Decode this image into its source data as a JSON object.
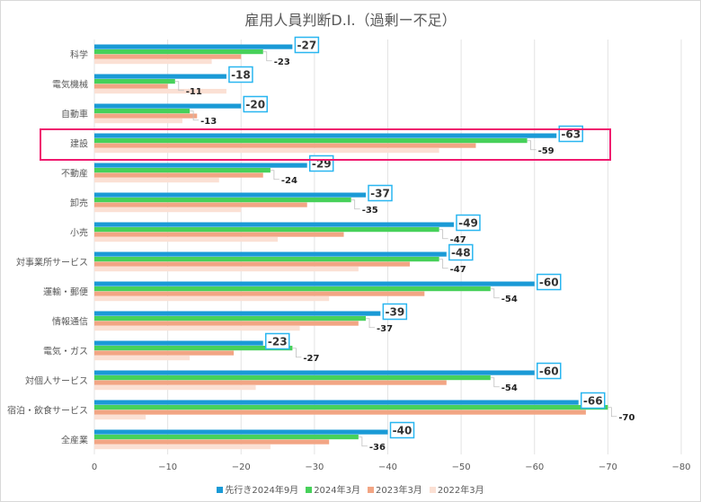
{
  "chart_data": {
    "type": "bar",
    "orientation": "horizontal",
    "title": "雇用人員判断D.I.（過剰ー不足）",
    "categories": [
      "科学",
      "電気機械",
      "自動車",
      "建設",
      "不動産",
      "卸売",
      "小売",
      "対事業所サービス",
      "運輸・郵便",
      "情報通信",
      "電気・ガス",
      "対個人サービス",
      "宿泊・飲食サービス",
      "全産業"
    ],
    "series": [
      {
        "name": "先行き2024年9月",
        "color": "#1a9ad6",
        "values": [
          -27,
          -18,
          -20,
          -63,
          -29,
          -37,
          -49,
          -48,
          -60,
          -39,
          -23,
          -60,
          -66,
          -40
        ]
      },
      {
        "name": "2024年3月",
        "color": "#47d15a",
        "values": [
          -23,
          -11,
          -13,
          -59,
          -24,
          -35,
          -47,
          -47,
          -54,
          -37,
          -27,
          -54,
          -70,
          -36
        ]
      },
      {
        "name": "2023年3月",
        "color": "#f2a584",
        "values": [
          -20,
          -10,
          -14,
          -52,
          -23,
          -29,
          -34,
          -43,
          -45,
          -36,
          -19,
          -48,
          -67,
          -32
        ]
      },
      {
        "name": "2022年3月",
        "color": "#fbe0d4",
        "values": [
          -16,
          -18,
          -12,
          -47,
          -17,
          -20,
          -25,
          -36,
          -32,
          -28,
          -13,
          -22,
          -7,
          -24
        ]
      }
    ],
    "xlim": [
      0,
      -80
    ],
    "xticks": [
      "0",
      "−10",
      "−20",
      "−30",
      "−40",
      "−50",
      "−60",
      "−70",
      "−80"
    ],
    "grid": true,
    "legend": "bottom",
    "highlight_category": "建設",
    "highlight_color": "#f0196e",
    "label_box_color": "#29b6f0"
  }
}
